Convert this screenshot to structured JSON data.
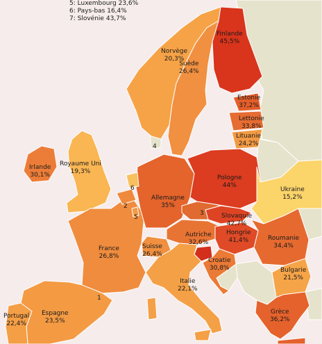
{
  "legend": [
    {
      "num": "5",
      "name": "Luxembourg",
      "value": "23,6%"
    },
    {
      "num": "6",
      "name": "Pays-bas",
      "value": "16,4%"
    },
    {
      "num": "7",
      "name": "Slovénie",
      "value": "43,7%"
    }
  ],
  "countries": {
    "finlande": {
      "name": "Finlande",
      "value": "45,5%",
      "color": "#d9341c"
    },
    "norvege": {
      "name": "Norvège",
      "value": "20,3%",
      "color": "#f6a347"
    },
    "suede": {
      "name": "Suède",
      "value": "26,4%",
      "color": "#f09040"
    },
    "estonie": {
      "name": "Estonie",
      "value": "37,2%",
      "color": "#e45e2a"
    },
    "lettonie": {
      "name": "Lettonie",
      "value": "33,8%",
      "color": "#e66c32"
    },
    "lituanie": {
      "name": "Lituanie",
      "value": "24,2%",
      "color": "#f29a44"
    },
    "irlande": {
      "name": "Irlande",
      "value": "30,1%",
      "color": "#ec7d38"
    },
    "royaumeuni": {
      "name": "Royaume Uni",
      "value": "19,3%",
      "color": "#f9b653"
    },
    "pologne": {
      "name": "Pologne",
      "value": "44%",
      "color": "#dc3c20"
    },
    "ukraine": {
      "name": "Ukraine",
      "value": "15,2%",
      "color": "#fbd46a"
    },
    "allemagne": {
      "name": "Allemagne",
      "value": "35%",
      "color": "#e4642c"
    },
    "slovaquie": {
      "name": "Slovaquie",
      "value": "42,7%",
      "color": "#de4424"
    },
    "france": {
      "name": "France",
      "value": "26,8%",
      "color": "#f08c3e"
    },
    "suisse": {
      "name": "Suisse",
      "value": "26,4%",
      "color": "#f09040"
    },
    "autriche": {
      "name": "Autriche",
      "value": "32,6%",
      "color": "#e87434"
    },
    "hongrie": {
      "name": "Hongrie",
      "value": "41,4%",
      "color": "#e04a26"
    },
    "roumanie": {
      "name": "Roumanie",
      "value": "34,4%",
      "color": "#e66a30"
    },
    "croatie": {
      "name": "Croatie",
      "value": "30,8%",
      "color": "#ea7a36"
    },
    "italie": {
      "name": "Italie",
      "value": "22,1%",
      "color": "#f4a046"
    },
    "bulgarie": {
      "name": "Bulgarie",
      "value": "21,5%",
      "color": "#f5a448"
    },
    "portugal": {
      "name": "Portugal",
      "value": "22,4%",
      "color": "#f49e45"
    },
    "espagne": {
      "name": "Espagne",
      "value": "23,5%",
      "color": "#f39a43"
    },
    "grece": {
      "name": "Grèce",
      "value": "36,2%",
      "color": "#e5622c"
    }
  },
  "markers": [
    "1",
    "2",
    "3",
    "4",
    "5",
    "6"
  ],
  "colors": {
    "no_data": "#e6e3cc",
    "sea": "#f6ecec",
    "border": "#ffffff"
  }
}
